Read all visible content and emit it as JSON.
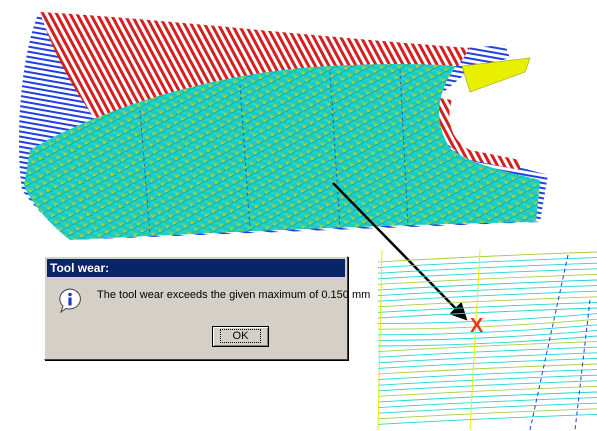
{
  "dialog": {
    "title": "Tool wear:",
    "message": "The tool wear exceeds the given maximum of 0.150 mm",
    "ok_label": "OK",
    "icon": "info-icon"
  },
  "detail_view": {
    "marker": "X",
    "marker_color": "#e8381c"
  },
  "colors": {
    "toolpath_red": "#d42020",
    "toolpath_blue": "#2040e0",
    "surface_cyan": "#20d8d0",
    "surface_yellow": "#e8f000",
    "title_bar": "#0a246a",
    "dialog_bg": "#d4d0c8"
  }
}
